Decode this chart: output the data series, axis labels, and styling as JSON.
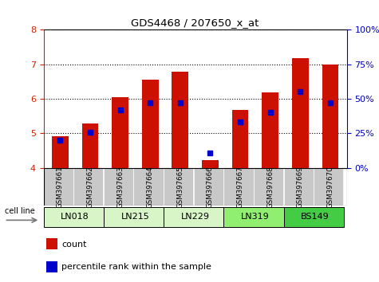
{
  "title": "GDS4468 / 207650_x_at",
  "samples": [
    "GSM397661",
    "GSM397662",
    "GSM397663",
    "GSM397664",
    "GSM397665",
    "GSM397666",
    "GSM397667",
    "GSM397668",
    "GSM397669",
    "GSM397670"
  ],
  "cell_lines": [
    {
      "name": "LN018",
      "indices": [
        0,
        1
      ],
      "color": "#d8f5c8"
    },
    {
      "name": "LN215",
      "indices": [
        2,
        3
      ],
      "color": "#d8f5c8"
    },
    {
      "name": "LN229",
      "indices": [
        4,
        5
      ],
      "color": "#d8f5c8"
    },
    {
      "name": "LN319",
      "indices": [
        6,
        7
      ],
      "color": "#90ee70"
    },
    {
      "name": "BS149",
      "indices": [
        8,
        9
      ],
      "color": "#44cc44"
    }
  ],
  "count_values": [
    4.92,
    5.28,
    6.05,
    6.55,
    6.78,
    4.23,
    5.68,
    6.18,
    7.18,
    7.0
  ],
  "percentile_values": [
    20,
    26,
    42,
    47,
    47,
    11,
    33,
    40,
    55,
    47
  ],
  "ylim_left": [
    4,
    8
  ],
  "ylim_right": [
    0,
    100
  ],
  "yticks_left": [
    4,
    5,
    6,
    7,
    8
  ],
  "yticks_right": [
    0,
    25,
    50,
    75,
    100
  ],
  "bar_color": "#cc1100",
  "percentile_color": "#0000cc",
  "bar_width": 0.55,
  "sample_bg_color": "#c8c8c8",
  "left_axis_color": "#cc2200",
  "right_axis_color": "#0000bb"
}
